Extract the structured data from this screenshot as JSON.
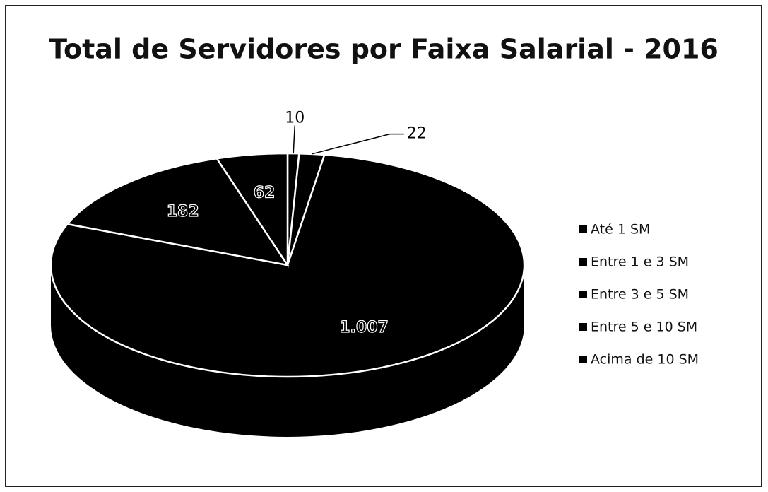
{
  "chart_data": {
    "type": "pie",
    "title": "Total de Servidores por Faixa Salarial - 2016",
    "categories": [
      "Até 1 SM",
      "Entre 1 e 3 SM",
      "Entre 3 e 5 SM",
      "Entre 5 e 10 SM",
      "Acima de 10 SM"
    ],
    "values": [
      10,
      22,
      1007,
      182,
      62
    ],
    "value_labels": [
      "10",
      "22",
      "1.007",
      "182",
      "62"
    ],
    "color": "#000000",
    "legend": "right"
  }
}
